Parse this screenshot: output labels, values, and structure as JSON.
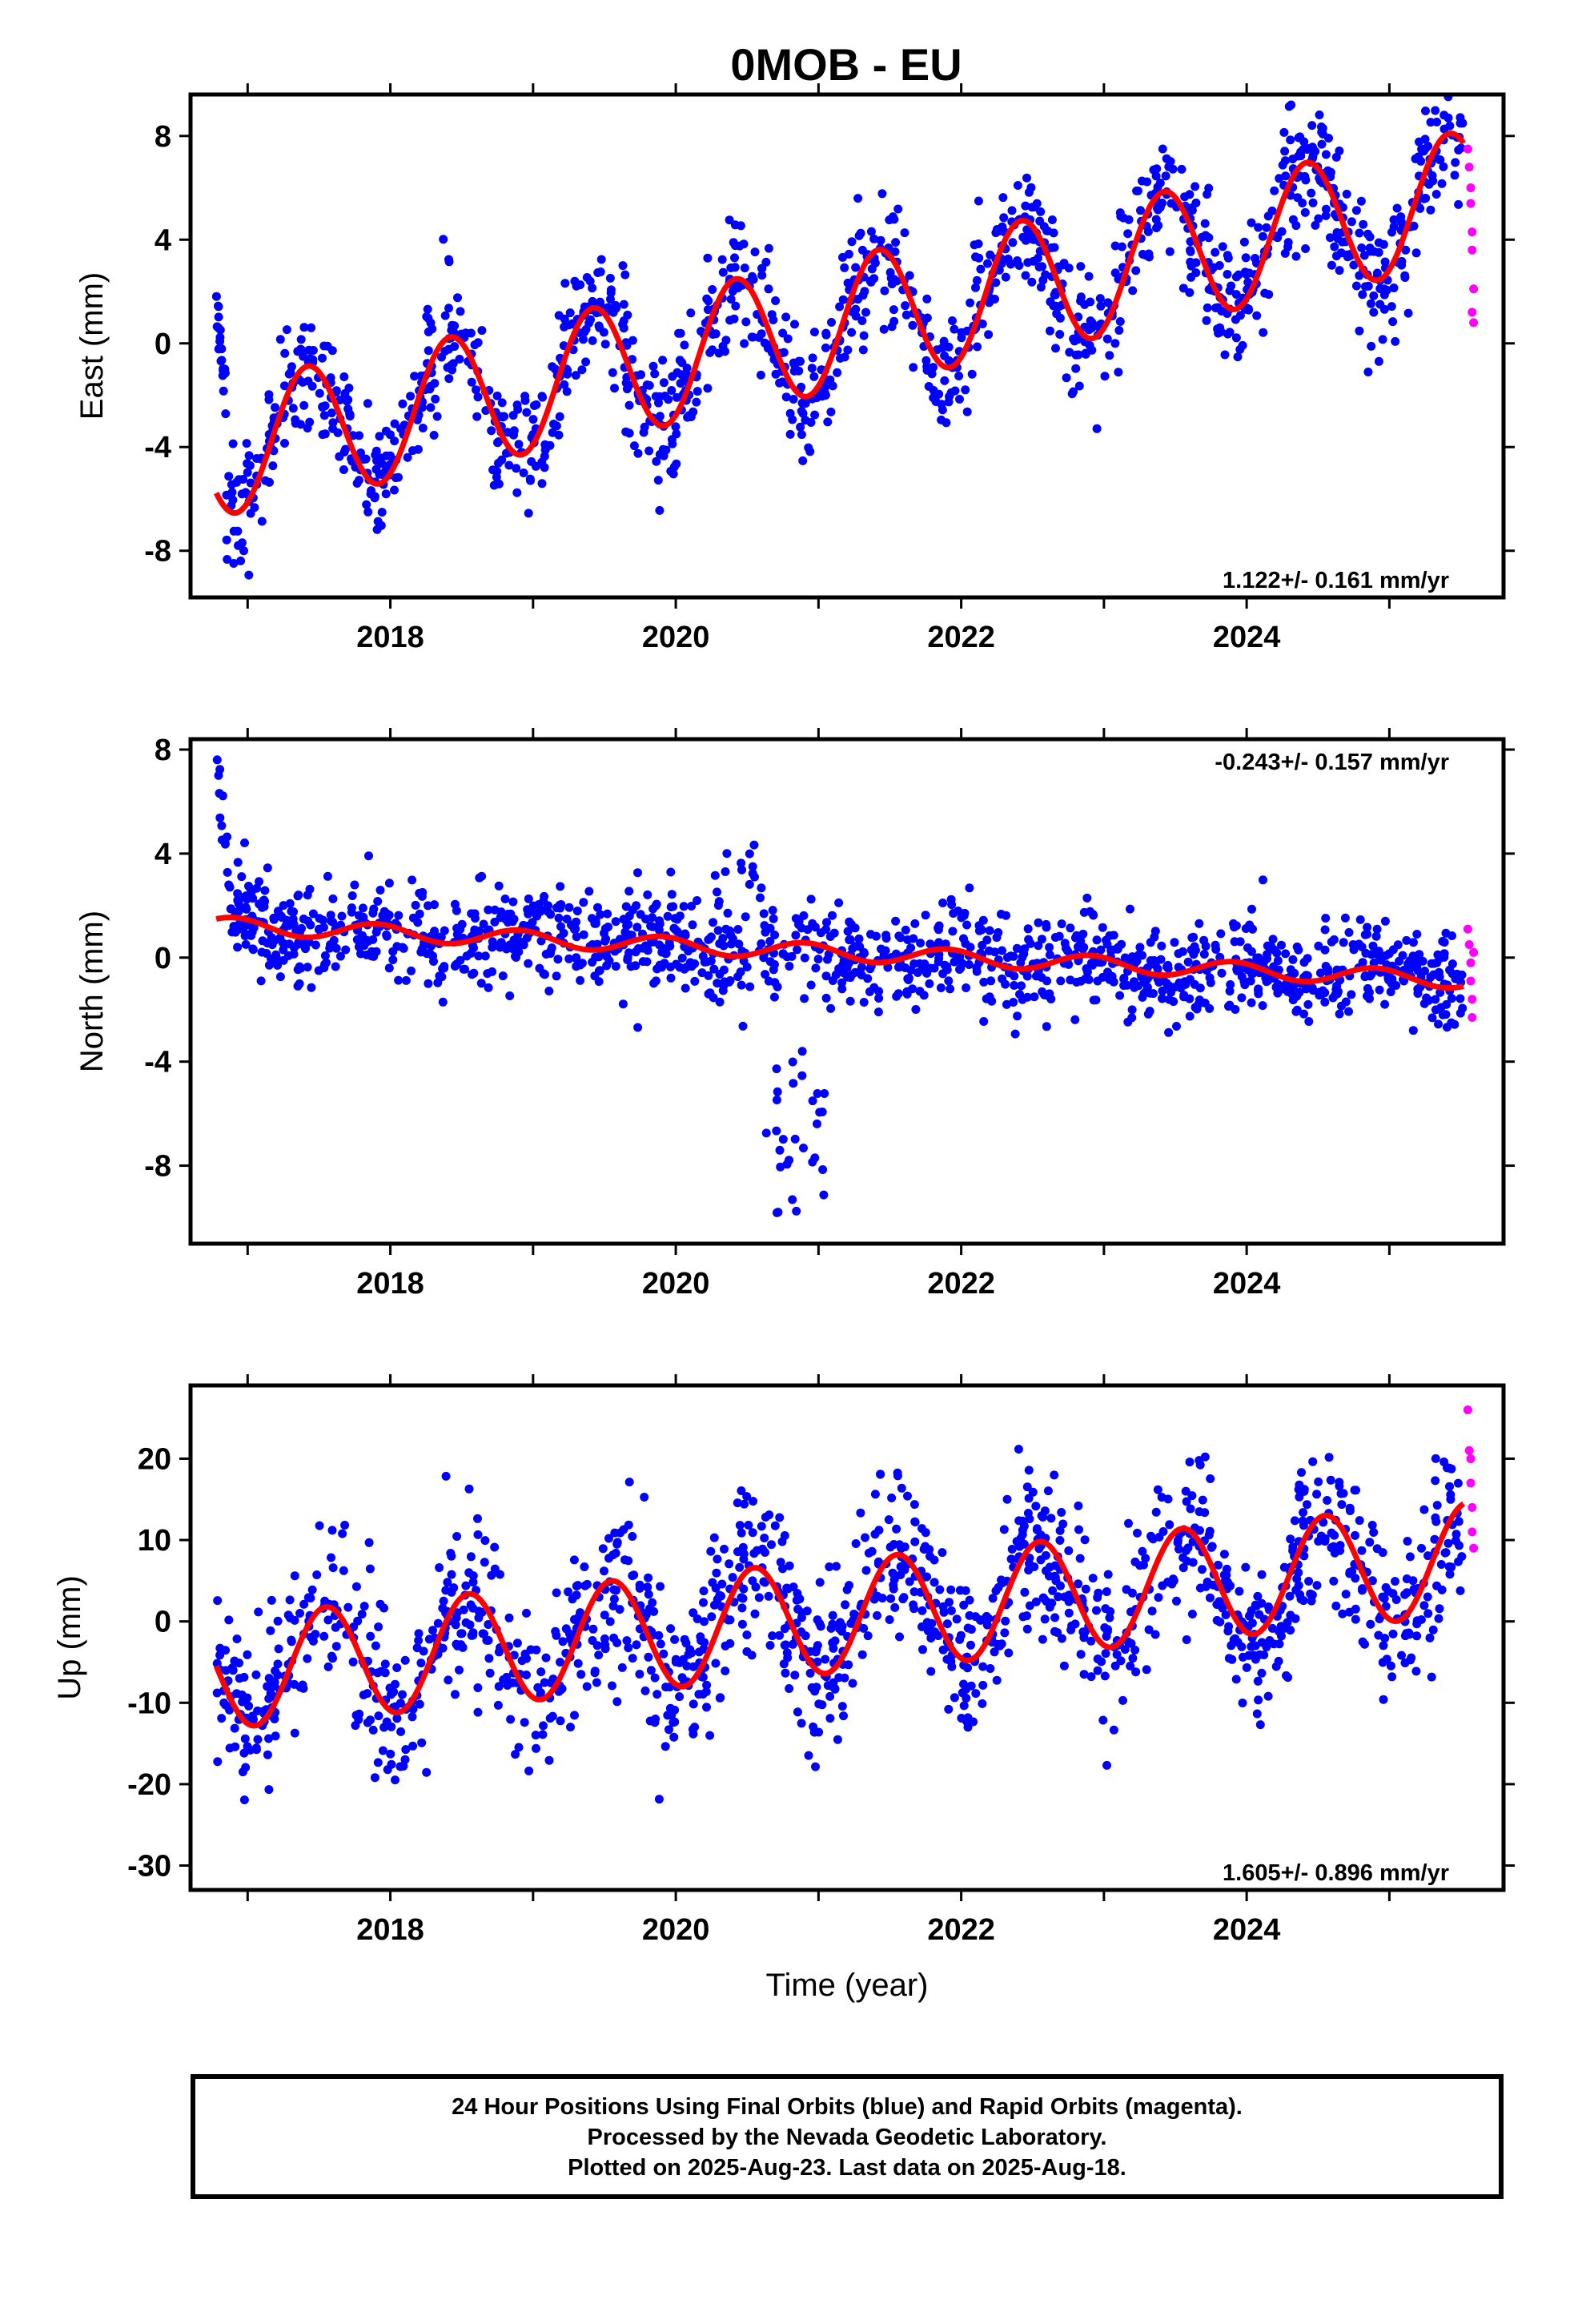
{
  "title": "0MOB - EU",
  "footer": {
    "line1": "24 Hour Positions Using Final Orbits (blue) and Rapid Orbits (magenta).",
    "line2": "Processed by the Nevada Geodetic Laboratory.",
    "line3": "Plotted on 2025-Aug-23. Last data on 2025-Aug-18."
  },
  "colors": {
    "final": "#0000ff",
    "rapid": "#ff00ff",
    "model": "#ff0000",
    "frame": "#000000"
  },
  "chart_data": [
    {
      "type": "scatter",
      "ylabel": "East (mm)",
      "xlabel": "",
      "xlim": [
        2016.6,
        2025.8
      ],
      "ylim": [
        -9.8,
        9.6
      ],
      "xticks": [
        "2018",
        "2020",
        "2022",
        "2024"
      ],
      "yticks": [
        "8",
        "4",
        "0",
        "-4",
        "-8"
      ],
      "rate_label": "1.122+/- 0.161 mm/yr",
      "rate_position": "bottom-right",
      "start": 2016.78,
      "end": 2025.52,
      "model": {
        "offset": -3.9,
        "rate": 1.122,
        "seasonal_amplitude": 2.55,
        "phase_peak": 0.42,
        "ref_epoch": 2017.0
      },
      "scatter_sd": 1.25,
      "rapid_points": [
        [
          2025.55,
          7.5
        ],
        [
          2025.56,
          6.8
        ],
        [
          2025.57,
          6.0
        ],
        [
          2025.57,
          5.4
        ],
        [
          2025.58,
          4.3
        ],
        [
          2025.58,
          3.6
        ],
        [
          2025.59,
          2.1
        ],
        [
          2025.59,
          0.8
        ],
        [
          2025.58,
          1.2
        ]
      ]
    },
    {
      "type": "scatter",
      "ylabel": "North (mm)",
      "xlabel": "",
      "xlim": [
        2016.6,
        2025.8
      ],
      "ylim": [
        -11,
        8.4
      ],
      "xticks": [
        "2018",
        "2020",
        "2022",
        "2024"
      ],
      "yticks": [
        "8",
        "4",
        "0",
        "-4",
        "-8"
      ],
      "rate_label": "-0.243+/- 0.157 mm/yr",
      "rate_position": "top-right",
      "start": 2016.78,
      "end": 2025.52,
      "model": {
        "offset": 1.2,
        "rate": -0.243,
        "seasonal_amplitude": 0.32,
        "phase_peak": 0.9,
        "ref_epoch": 2017.0
      },
      "scatter_sd": 0.9,
      "rapid_points": [
        [
          2025.55,
          1.1
        ],
        [
          2025.56,
          0.5
        ],
        [
          2025.57,
          -0.2
        ],
        [
          2025.57,
          -0.9
        ],
        [
          2025.58,
          -1.6
        ],
        [
          2025.58,
          -2.3
        ],
        [
          2025.59,
          0.2
        ]
      ]
    },
    {
      "type": "scatter",
      "ylabel": "Up (mm)",
      "xlabel": "Time (year)",
      "xlim": [
        2016.6,
        2025.8
      ],
      "ylim": [
        -33,
        29
      ],
      "xticks": [
        "2018",
        "2020",
        "2022",
        "2024"
      ],
      "yticks": [
        "20",
        "10",
        "0",
        "-10",
        "-20",
        "-30"
      ],
      "rate_label": "1.605+/- 0.896 mm/yr",
      "rate_position": "bottom-right",
      "start": 2016.78,
      "end": 2025.52,
      "model": {
        "offset": -6.0,
        "rate": 1.605,
        "seasonal_amplitude": 6.9,
        "phase_peak": 0.55,
        "ref_epoch": 2017.0
      },
      "scatter_sd": 5.0,
      "rapid_points": [
        [
          2025.55,
          26
        ],
        [
          2025.56,
          21
        ],
        [
          2025.57,
          20
        ],
        [
          2025.57,
          17
        ],
        [
          2025.58,
          14
        ],
        [
          2025.58,
          11
        ],
        [
          2025.59,
          9
        ]
      ]
    }
  ]
}
